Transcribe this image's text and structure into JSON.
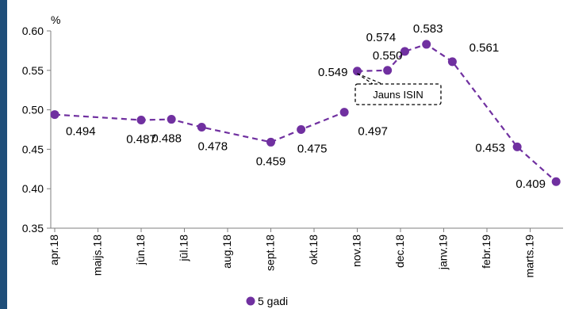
{
  "chart_data": {
    "type": "line",
    "unit": "%",
    "ylim": [
      0.35,
      0.6
    ],
    "yticks": [
      "0.35",
      "0.40",
      "0.45",
      "0.50",
      "0.55",
      "0.60"
    ],
    "xtick_labels": [
      "apr.18",
      "maijs.18",
      "jūn.18",
      "jūl.18",
      "aug.18",
      "sept.18",
      "okt.18",
      "nov.18",
      "dec.18",
      "janv.19",
      "febr.19",
      "marts.19"
    ],
    "series": [
      {
        "name": "5 gadi",
        "color": "#7030a0",
        "points": [
          {
            "x": 0.0,
            "y": 0.494,
            "label": "0.494"
          },
          {
            "x": 2.0,
            "y": 0.487,
            "label": "0.487"
          },
          {
            "x": 2.7,
            "y": 0.488,
            "label": "0.488"
          },
          {
            "x": 3.4,
            "y": 0.478,
            "label": "0.478"
          },
          {
            "x": 5.0,
            "y": 0.459,
            "label": "0.459"
          },
          {
            "x": 5.7,
            "y": 0.475,
            "label": "0.475"
          },
          {
            "x": 6.7,
            "y": 0.497,
            "label": "0.497"
          },
          {
            "x": 7.0,
            "y": 0.549,
            "label": "0.549"
          },
          {
            "x": 7.7,
            "y": 0.55,
            "label": "0.550"
          },
          {
            "x": 8.1,
            "y": 0.574,
            "label": "0.574"
          },
          {
            "x": 8.6,
            "y": 0.583,
            "label": "0.583"
          },
          {
            "x": 9.2,
            "y": 0.561,
            "label": "0.561"
          },
          {
            "x": 10.7,
            "y": 0.453,
            "label": "0.453"
          },
          {
            "x": 11.6,
            "y": 0.409,
            "label": "0.409"
          }
        ],
        "segments_break_after_index": 6
      }
    ],
    "annotation": {
      "text": "Jauns ISIN"
    },
    "legend": {
      "position": "bottom",
      "label": "5 gadi"
    }
  }
}
